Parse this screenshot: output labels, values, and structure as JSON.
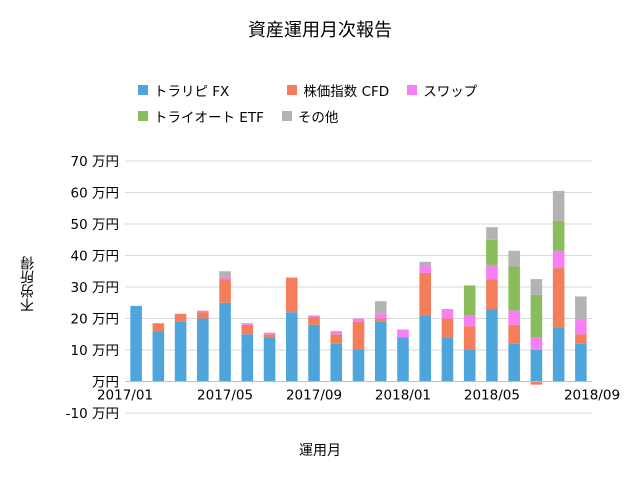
{
  "chart_data": {
    "type": "bar",
    "stacked": true,
    "title": "資産運用月次報告",
    "xlabel": "運用月",
    "ylabel": "不労所得",
    "ylim": [
      -10,
      70
    ],
    "yticks": [
      -10,
      0,
      10,
      20,
      30,
      40,
      50,
      60,
      70
    ],
    "ytick_labels": [
      "-10 万円",
      "万円",
      "10 万円",
      "20 万円",
      "30 万円",
      "40 万円",
      "50 万円",
      "60 万円",
      "70 万円"
    ],
    "categories": [
      "2017/01",
      "2017/02",
      "2017/03",
      "2017/04",
      "2017/05",
      "2017/06",
      "2017/07",
      "2017/08",
      "2017/09",
      "2017/10",
      "2017/11",
      "2017/12",
      "2018/01",
      "2018/02",
      "2018/03",
      "2018/04",
      "2018/05",
      "2018/06",
      "2018/07",
      "2018/08",
      "2018/09"
    ],
    "xtick_labels": [
      {
        "index": 0,
        "label": "2017/01"
      },
      {
        "index": 4,
        "label": "2017/05"
      },
      {
        "index": 8,
        "label": "2017/09"
      },
      {
        "index": 12,
        "label": "2018/01"
      },
      {
        "index": 16,
        "label": "2018/05"
      },
      {
        "index": 20,
        "label": "2018/09"
      }
    ],
    "grid": true,
    "legend_position": "top",
    "series": [
      {
        "name": "トラリピ FX",
        "color": "#4ea5db",
        "values": [
          24,
          16,
          19,
          20,
          25,
          15,
          14,
          22,
          18,
          12,
          10,
          19,
          14,
          21,
          14,
          10,
          23,
          12,
          10,
          17,
          12
        ]
      },
      {
        "name": "株価指数 CFD",
        "color": "#f47d5b",
        "values": [
          0,
          2.5,
          2.5,
          2,
          7.5,
          3,
          1,
          11,
          2.5,
          3,
          9,
          1,
          0,
          13.5,
          6,
          7.5,
          9.5,
          6,
          -1,
          19,
          3
        ]
      },
      {
        "name": "スワップ",
        "color": "#f77ef5",
        "values": [
          0,
          0,
          0,
          0.5,
          0.5,
          0.5,
          0.5,
          0,
          0.5,
          1,
          1,
          1.5,
          2.5,
          2.5,
          3,
          3.5,
          4.5,
          4.5,
          4,
          5.5,
          4.5
        ]
      },
      {
        "name": "トライオート ETF",
        "color": "#89bd5c",
        "values": [
          0,
          0,
          0,
          0,
          0,
          0,
          0,
          0,
          0,
          0,
          0,
          0,
          0,
          0,
          0,
          9.5,
          8,
          14,
          13.5,
          9.5,
          0
        ]
      },
      {
        "name": "その他",
        "color": "#b3b3b3",
        "values": [
          0,
          0,
          0,
          0,
          2,
          0,
          0,
          0,
          0,
          0,
          0,
          4,
          0,
          1,
          0,
          0,
          4,
          5,
          5,
          9.5,
          7.5
        ]
      }
    ]
  }
}
